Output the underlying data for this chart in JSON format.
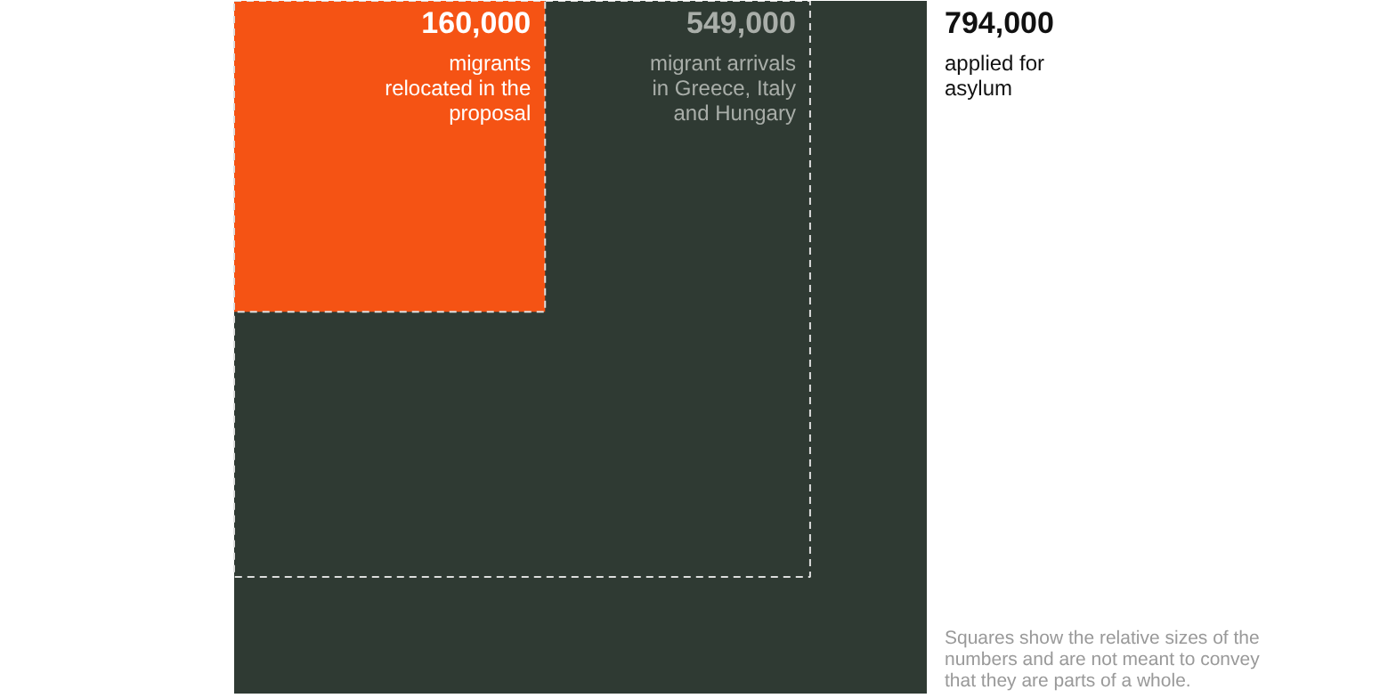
{
  "chart_data": {
    "type": "other",
    "categories": [
      "applied for asylum",
      "migrant arrivals in Greece, Italy and Hungary",
      "migrants relocated in the proposal"
    ],
    "values": [
      794000,
      549000,
      160000
    ],
    "value_labels": [
      "794,000",
      "549,000",
      "160,000"
    ],
    "colors": [
      "#2f3a33",
      "#2f3a33",
      "#f55314"
    ],
    "annotations": [
      "Squares show the relative sizes of the numbers and are not meant to convey that they are parts of a whole."
    ]
  }
}
